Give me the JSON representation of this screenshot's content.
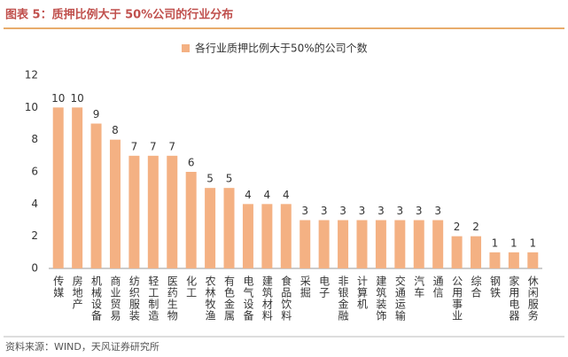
{
  "chart_data": {
    "type": "bar",
    "title": "图表 5：质押比例大于 50%公司的行业分布",
    "legend": "各行业质押比例大于50%的公司个数",
    "source": "资料来源：WIND，天风证券研究所",
    "categories": [
      "传媒",
      "房地产",
      "机械设备",
      "商业贸易",
      "纺织服装",
      "轻工制造",
      "医药生物",
      "化工",
      "农林牧渔",
      "有色金属",
      "电气设备",
      "建筑材料",
      "食品饮料",
      "采掘",
      "电子",
      "非银金融",
      "计算机",
      "建筑装饰",
      "交通运输",
      "汽车",
      "通信",
      "公用事业",
      "综合",
      "钢铁",
      "家用电器",
      "休闲服务"
    ],
    "values": [
      10,
      10,
      9,
      8,
      7,
      7,
      7,
      6,
      5,
      5,
      4,
      4,
      4,
      3,
      3,
      3,
      3,
      3,
      3,
      3,
      3,
      2,
      2,
      1,
      1,
      1
    ],
    "color": "#f4b183",
    "ylim": [
      0,
      12
    ],
    "yticks": [
      0,
      2,
      4,
      6,
      8,
      10,
      12
    ],
    "grid": false
  }
}
